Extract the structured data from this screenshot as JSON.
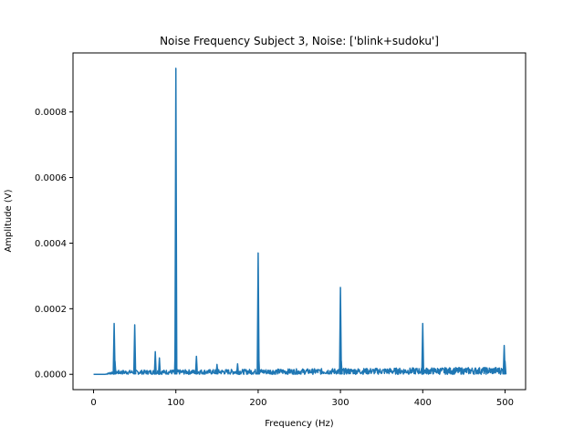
{
  "chart_data": {
    "type": "line",
    "title": "Noise Frequency Subject 3, Noise: ['blink+sudoku']",
    "xlabel": "Frequency (Hz)",
    "ylabel": "Amplitude (V)",
    "xlim": [
      -25,
      525
    ],
    "ylim": [
      -4.67e-05,
      0.00098
    ],
    "xticks": [
      0,
      100,
      200,
      300,
      400,
      500
    ],
    "yticks": [
      0.0,
      0.0002,
      0.0004,
      0.0006,
      0.0008
    ],
    "xtick_labels": [
      "0",
      "100",
      "200",
      "300",
      "400",
      "500"
    ],
    "ytick_labels": [
      "0.0000",
      "0.0002",
      "0.0004",
      "0.0006",
      "0.0008"
    ],
    "grid": false,
    "series": [
      {
        "color": "#1f77b4",
        "baseline": {
          "flat_until_hz": 14,
          "noise_floor_start": 1.2e-05,
          "noise_floor_end": 2.2e-05,
          "max_hz": 500
        },
        "peaks": [
          {
            "x": 25,
            "y": 0.000155
          },
          {
            "x": 26,
            "y": 4e-05
          },
          {
            "x": 50,
            "y": 0.000151
          },
          {
            "x": 75,
            "y": 6.9e-05
          },
          {
            "x": 80,
            "y": 5e-05
          },
          {
            "x": 100,
            "y": 0.000933
          },
          {
            "x": 99.5,
            "y": 0.00011
          },
          {
            "x": 125,
            "y": 5.5e-05
          },
          {
            "x": 150,
            "y": 3e-05
          },
          {
            "x": 175,
            "y": 3.2e-05
          },
          {
            "x": 200,
            "y": 0.00037
          },
          {
            "x": 200.5,
            "y": 7e-05
          },
          {
            "x": 300,
            "y": 0.000265
          },
          {
            "x": 301,
            "y": 4e-05
          },
          {
            "x": 400,
            "y": 0.000155
          },
          {
            "x": 499,
            "y": 8.8e-05
          },
          {
            "x": 500,
            "y": 4e-05
          }
        ]
      }
    ]
  }
}
